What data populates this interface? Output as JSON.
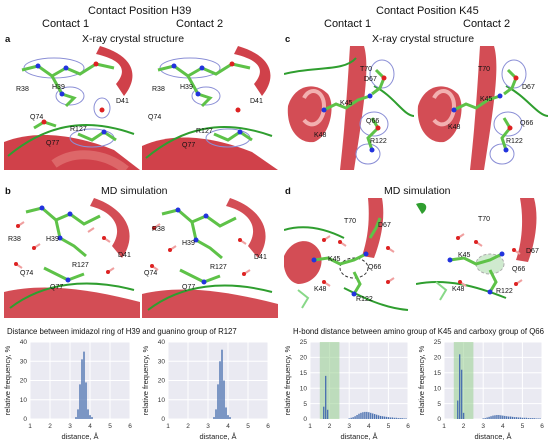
{
  "header": {
    "h39_title": "Contact Position H39",
    "k45_title": "Contact Position K45",
    "h39_contact1": "Contact 1",
    "h39_contact2": "Contact 2",
    "k45_contact1": "Contact 1",
    "k45_contact2": "Contact 2"
  },
  "panels": {
    "a": {
      "letter": "a",
      "title": "X-ray crystal structure"
    },
    "b": {
      "letter": "b",
      "title": "MD simulation"
    },
    "c": {
      "letter": "c",
      "title": "X-ray crystal structure"
    },
    "d": {
      "letter": "d",
      "title": "MD simulation"
    }
  },
  "residue_labels": {
    "a1": [
      "R38",
      "H39",
      "D41",
      "Q74",
      "R127",
      "Q77"
    ],
    "a2": [
      "R38",
      "H39",
      "D41",
      "Q74",
      "R127",
      "Q77"
    ],
    "b1": [
      "R38",
      "H39",
      "D41",
      "Q74",
      "R127",
      "Q77"
    ],
    "b2": [
      "R38",
      "H39",
      "D41",
      "Q74",
      "R127",
      "Q77"
    ],
    "c1": [
      "T70",
      "D67",
      "K45",
      "K48",
      "Q66",
      "R122"
    ],
    "c2": [
      "T70",
      "D67",
      "K45",
      "K48",
      "Q66",
      "R122"
    ],
    "d1": [
      "T70",
      "D67",
      "K45",
      "Q66",
      "K48",
      "R122"
    ],
    "d2": [
      "T70",
      "D67",
      "K45",
      "Q66",
      "K48",
      "R122"
    ]
  },
  "hist_titles": {
    "left": "Distance between imidazol ring of H39 and guanino group of R127",
    "right": "H-bond distance between amino group of K45 and carboxy group of Q66"
  },
  "colors": {
    "bar": "#4c72b0",
    "plot_bg": "#eaeaf2",
    "grid": "#ffffff",
    "shade": "#98d08f",
    "helix_red": "#c8202a",
    "carbon_green": "#5ec248",
    "mesh_blue": "#8b8fd6"
  },
  "chart_data": [
    {
      "type": "bar",
      "id": "h39-contact1",
      "xlabel": "distance, Å",
      "ylabel": "relative frequency, %",
      "xlim": [
        1,
        6
      ],
      "ylim": [
        0,
        40
      ],
      "xticks": [
        1,
        2,
        3,
        4,
        5,
        6
      ],
      "yticks": [
        0,
        10,
        20,
        30,
        40
      ],
      "bin_width": 0.1,
      "x": [
        3.3,
        3.4,
        3.5,
        3.6,
        3.7,
        3.8,
        3.9,
        4.0,
        4.1
      ],
      "values": [
        1,
        5,
        18,
        31,
        35,
        19,
        5,
        2,
        1
      ]
    },
    {
      "type": "bar",
      "id": "h39-contact2",
      "xlabel": "distance, Å",
      "ylabel": "relative frequency, %",
      "xlim": [
        1,
        6
      ],
      "ylim": [
        0,
        40
      ],
      "xticks": [
        1,
        2,
        3,
        4,
        5,
        6
      ],
      "yticks": [
        0,
        10,
        20,
        30,
        40
      ],
      "bin_width": 0.1,
      "x": [
        3.3,
        3.4,
        3.5,
        3.6,
        3.7,
        3.8,
        3.9,
        4.0,
        4.1
      ],
      "values": [
        1,
        5,
        18,
        30,
        36,
        20,
        6,
        2,
        1
      ]
    },
    {
      "type": "bar",
      "id": "k45-contact1",
      "xlabel": "distance, Å",
      "ylabel": "relative frequency, %",
      "xlim": [
        1,
        6
      ],
      "ylim": [
        0,
        25
      ],
      "xticks": [
        1,
        2,
        3,
        4,
        5,
        6
      ],
      "yticks": [
        0,
        5,
        10,
        15,
        20,
        25
      ],
      "bin_width": 0.1,
      "highlight_range": [
        1.5,
        2.5
      ],
      "x": [
        1.7,
        1.8,
        1.9,
        3.0,
        3.1,
        3.2,
        3.3,
        3.4,
        3.5,
        3.6,
        3.7,
        3.8,
        3.9,
        4.0,
        4.1,
        4.2,
        4.3,
        4.4,
        4.5,
        4.6,
        4.7,
        4.8,
        4.9,
        5.0,
        5.1,
        5.2,
        5.3,
        5.4,
        5.5,
        5.6,
        5.7,
        5.8,
        5.9
      ],
      "values": [
        4,
        14,
        3,
        0.2,
        0.4,
        0.6,
        0.9,
        1.3,
        1.7,
        2.0,
        2.2,
        2.3,
        2.3,
        2.2,
        2.0,
        1.8,
        1.6,
        1.4,
        1.2,
        1.0,
        0.9,
        0.8,
        0.7,
        0.6,
        0.5,
        0.5,
        0.4,
        0.4,
        0.3,
        0.3,
        0.3,
        0.2,
        0.2
      ]
    },
    {
      "type": "bar",
      "id": "k45-contact2",
      "xlabel": "distance, Å",
      "ylabel": "relative frequency, %",
      "xlim": [
        1,
        6
      ],
      "ylim": [
        0,
        25
      ],
      "xticks": [
        1,
        2,
        3,
        4,
        5,
        6
      ],
      "yticks": [
        0,
        5,
        10,
        15,
        20,
        25
      ],
      "bin_width": 0.1,
      "highlight_range": [
        1.5,
        2.5
      ],
      "x": [
        1.7,
        1.8,
        1.9,
        2.0,
        3.0,
        3.1,
        3.2,
        3.3,
        3.4,
        3.5,
        3.6,
        3.7,
        3.8,
        3.9,
        4.0,
        4.1,
        4.2,
        4.3,
        4.4,
        4.5,
        4.6,
        4.7,
        4.8,
        4.9,
        5.0,
        5.1,
        5.2,
        5.3,
        5.4,
        5.5,
        5.6,
        5.7,
        5.8,
        5.9
      ],
      "values": [
        6,
        21,
        16,
        2,
        0.2,
        0.3,
        0.5,
        0.7,
        0.9,
        1.1,
        1.2,
        1.3,
        1.3,
        1.2,
        1.1,
        1.0,
        0.9,
        0.8,
        0.8,
        0.7,
        0.6,
        0.6,
        0.5,
        0.5,
        0.4,
        0.4,
        0.4,
        0.3,
        0.3,
        0.3,
        0.3,
        0.2,
        0.2,
        0.2
      ]
    }
  ]
}
